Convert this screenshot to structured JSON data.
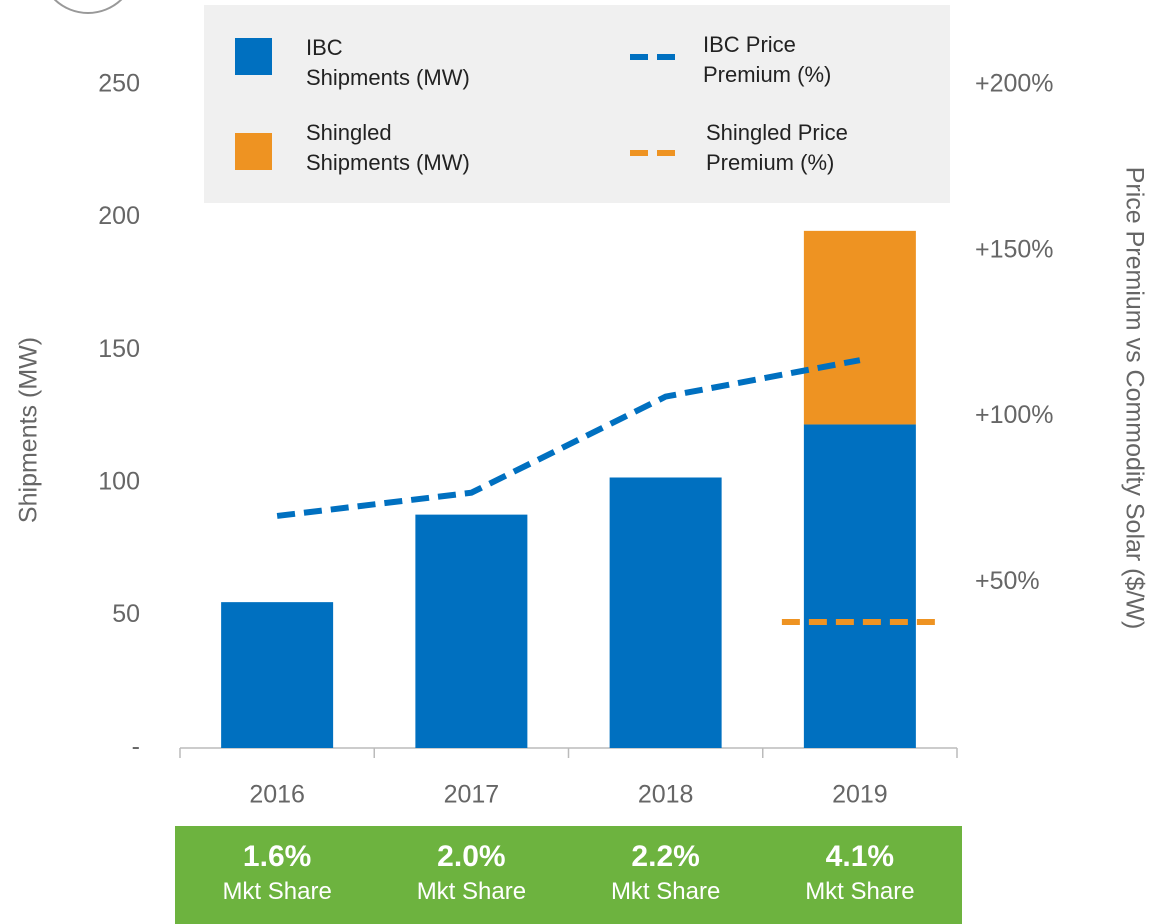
{
  "chart_data": {
    "type": "bar",
    "categories": [
      "2016",
      "2017",
      "2018",
      "2019"
    ],
    "series": [
      {
        "name": "IBC\nShipments (MW)",
        "color": "#0070c0",
        "values": [
          55,
          88,
          102,
          122
        ]
      },
      {
        "name": "Shingled\nShipments (MW)",
        "color": "#ee9322",
        "values": [
          null,
          null,
          null,
          73
        ]
      },
      {
        "name": "IBC Price\nPremium (%)",
        "color": "#0070c0",
        "axis": "y2",
        "type": "line",
        "values": [
          70,
          77,
          106,
          117
        ]
      },
      {
        "name": "Shingled Price\nPremium (%)",
        "color": "#ee9322",
        "axis": "y2",
        "type": "line",
        "values": [
          null,
          null,
          null,
          38
        ]
      }
    ],
    "ylabel": "Shipments (MW)",
    "y2label": "Price  Premium vs Commodity Solar ($/W)",
    "ylim": [
      0,
      250
    ],
    "yticks": [
      {
        "value": 0,
        "label": "-"
      },
      50,
      100,
      150,
      200,
      250
    ],
    "y2lim": [
      0,
      200
    ],
    "y2ticks": [
      {
        "value": 50,
        "label": "+50%"
      },
      {
        "value": 100,
        "label": "+100%"
      },
      {
        "value": 150,
        "label": "+150%"
      },
      {
        "value": 200,
        "label": "+200%"
      }
    ],
    "market_share": {
      "labels": [
        "1.6%",
        "2.0%",
        "2.2%",
        "4.1%"
      ],
      "caption": "Mkt Share"
    }
  }
}
